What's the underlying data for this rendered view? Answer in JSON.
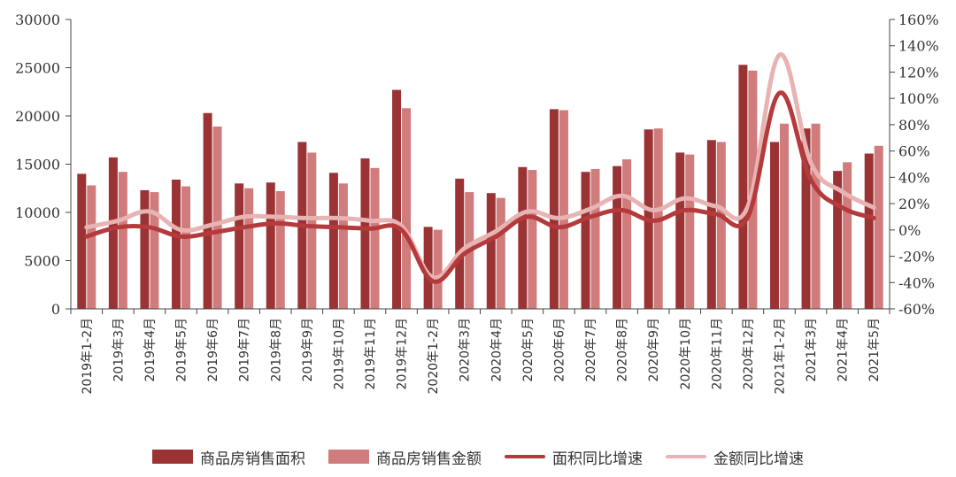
{
  "chart_data": {
    "type": "bar",
    "categories": [
      "2019年1-2月",
      "2019年3月",
      "2019年4月",
      "2019年5月",
      "2019年6月",
      "2019年7月",
      "2019年8月",
      "2019年9月",
      "2019年10月",
      "2019年11月",
      "2019年12月",
      "2020年1-2月",
      "2020年3月",
      "2020年4月",
      "2020年5月",
      "2020年6月",
      "2020年7月",
      "2020年8月",
      "2020年9月",
      "2020年10月",
      "2020年11月",
      "2020年12月",
      "2021年1-2月",
      "2021年3月",
      "2021年4月",
      "2021年5月"
    ],
    "series": [
      {
        "name": "商品房销售面积",
        "type": "bar",
        "axis": "left",
        "color": "#9b3335",
        "values": [
          14000,
          15700,
          12300,
          13400,
          20300,
          13000,
          13100,
          17300,
          14100,
          15600,
          22700,
          8500,
          13500,
          12000,
          14700,
          20700,
          14200,
          14800,
          18600,
          16200,
          17500,
          25300,
          17300,
          18700,
          14300,
          16100
        ]
      },
      {
        "name": "商品房销售金额",
        "type": "bar",
        "axis": "left",
        "color": "#d07b7c",
        "values": [
          12800,
          14200,
          12100,
          12700,
          18900,
          12500,
          12200,
          16200,
          13000,
          14600,
          20800,
          8200,
          12100,
          11500,
          14400,
          20600,
          14500,
          15500,
          18700,
          16000,
          17300,
          24700,
          19200,
          19200,
          15200,
          16900
        ]
      },
      {
        "name": "面积同比增速",
        "type": "line",
        "axis": "right",
        "color": "#b53a3b",
        "unit": "%",
        "values": [
          -5,
          2,
          2,
          -5,
          -2,
          2,
          5,
          3,
          2,
          1,
          0,
          -39,
          -18,
          -5,
          10,
          2,
          10,
          15,
          7,
          15,
          12,
          10,
          104,
          38,
          17,
          9
        ]
      },
      {
        "name": "金额同比增速",
        "type": "line",
        "axis": "right",
        "color": "#e8b3b3",
        "unit": "%",
        "values": [
          2,
          7,
          14,
          0,
          4,
          10,
          10,
          9,
          9,
          7,
          3,
          -36,
          -14,
          -1,
          14,
          9,
          16,
          26,
          15,
          24,
          18,
          18,
          133,
          51,
          29,
          17
        ]
      }
    ],
    "y_left": {
      "ylim": [
        0,
        30000
      ],
      "ticks": [
        "0",
        "5000",
        "10000",
        "15000",
        "20000",
        "25000",
        "30000"
      ]
    },
    "y_right": {
      "ylim": [
        -60,
        160
      ],
      "ticks": [
        "-60%",
        "-40%",
        "-20%",
        "0%",
        "20%",
        "40%",
        "60%",
        "80%",
        "100%",
        "120%",
        "140%",
        "160%"
      ]
    },
    "grid": false,
    "legend_position": "bottom"
  }
}
